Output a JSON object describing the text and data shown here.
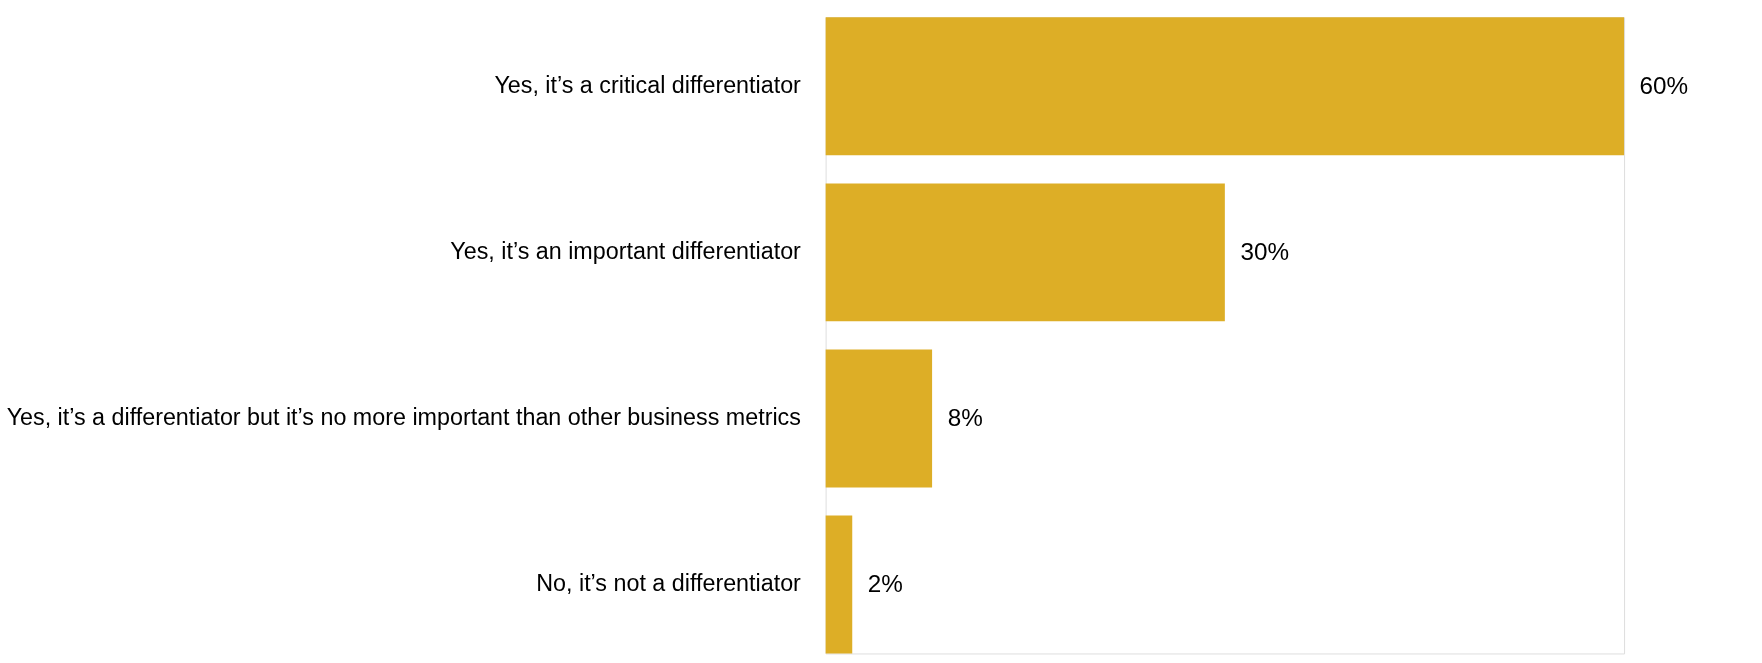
{
  "chart_data": {
    "type": "bar",
    "orientation": "horizontal",
    "categories": [
      "Yes, it’s a critical differentiator",
      "Yes, it’s an important differentiator",
      "Yes, it’s a differentiator but it’s no more important than other business metrics",
      "No, it’s not a differentiator"
    ],
    "values": [
      60,
      30,
      8,
      2
    ],
    "value_labels": [
      "60%",
      "30%",
      "8%",
      "2%"
    ],
    "color": "#ddae26",
    "grid": false
  }
}
